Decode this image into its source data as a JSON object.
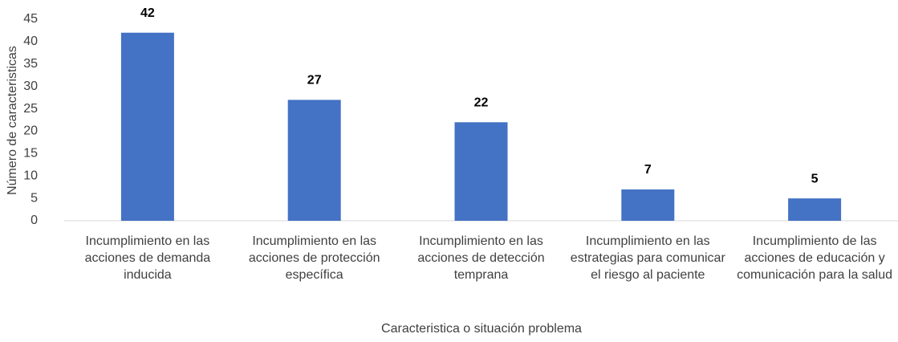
{
  "chart_data": {
    "type": "bar",
    "x_label": "Caracteristica o situación problema",
    "y_label": "Número de caracteristicas",
    "categories": [
      "Incumplimiento en las acciones de demanda inducida",
      "Incumplimiento en las acciones de protección específica",
      "Incumplimiento en las acciones de detección temprana",
      "Incumplimiento en las estrategias para comunicar el riesgo al paciente",
      "Incumplimiento de las acciones de educación y comunicación para la salud"
    ],
    "values": [
      42,
      27,
      22,
      7,
      5
    ],
    "color": "#4472c4",
    "ylim": [
      0,
      45
    ],
    "yticks": [
      0,
      5,
      10,
      15,
      20,
      25,
      30,
      35,
      40,
      45
    ],
    "grid": false
  }
}
